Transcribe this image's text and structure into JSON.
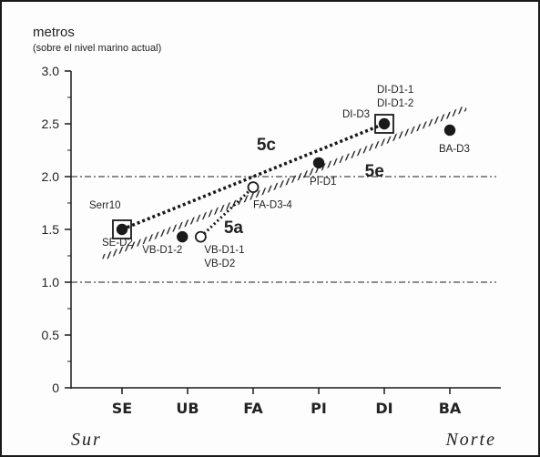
{
  "chart_data": {
    "type": "scatter",
    "ylabel": "metros",
    "ylabel_sub": "(sobre el nivel marino actual)",
    "ylim": [
      0,
      3.0
    ],
    "yticks": [
      "0",
      "0.5",
      "1.0",
      "1.5",
      "2.0",
      "2.5",
      "3.0"
    ],
    "categories": [
      "SE",
      "UB",
      "FA",
      "PI",
      "DI",
      "BA"
    ],
    "reference_lines": [
      1.0,
      2.0
    ],
    "points": [
      {
        "x": 0.0,
        "y": 1.5,
        "style": "filled-boxed",
        "labels": [
          "Serr10",
          "SE-D2"
        ]
      },
      {
        "x": 0.92,
        "y": 1.43,
        "style": "filled",
        "labels": [
          "VB-D1-2"
        ]
      },
      {
        "x": 1.2,
        "y": 1.43,
        "style": "open",
        "labels": [
          "VB-D1-1",
          "VB-D2"
        ]
      },
      {
        "x": 2.0,
        "y": 1.9,
        "style": "open",
        "labels": [
          "FA-D3-4"
        ]
      },
      {
        "x": 3.0,
        "y": 2.13,
        "style": "filled",
        "labels": [
          "PI-D1"
        ]
      },
      {
        "x": 4.0,
        "y": 2.5,
        "style": "filled-boxed",
        "labels": [
          "DI-D3",
          "DI-D1-1",
          "DI-D1-2"
        ]
      },
      {
        "x": 5.0,
        "y": 2.44,
        "style": "filled",
        "labels": [
          "BA-D3"
        ]
      }
    ],
    "trends": [
      {
        "name": "5c",
        "style": "dotted-thick",
        "from": [
          0.0,
          1.5
        ],
        "to": [
          4.0,
          2.5
        ]
      },
      {
        "name": "5e",
        "style": "hatched",
        "from": [
          -0.3,
          1.23
        ],
        "to": [
          5.25,
          2.65
        ]
      },
      {
        "name": "5a",
        "style": "dotted",
        "from": [
          1.2,
          1.43
        ],
        "to": [
          2.0,
          1.9
        ]
      }
    ],
    "direction_left": "Sur",
    "direction_right": "Norte",
    "grid": false
  },
  "colors": {
    "ink": "#1a1a1a"
  }
}
